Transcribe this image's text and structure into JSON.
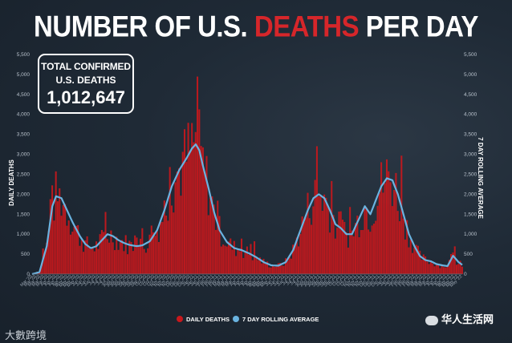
{
  "header": {
    "title_part1": "NUMBER OF U.S. ",
    "title_highlight": "DEATHS",
    "title_part2": " PER DAY"
  },
  "badge": {
    "line1": "TOTAL CONFIRMED",
    "line2": "U.S. DEATHS",
    "value": "1,012,647"
  },
  "watermarks": {
    "left": "大數跨境",
    "right": "华人生活网"
  },
  "colors": {
    "daily_bars": "#c8181c",
    "rolling_line": "#6ab3e0",
    "title_highlight": "#d6262a"
  },
  "chart_data": {
    "type": "bar",
    "title": "NUMBER OF U.S. DEATHS PER DAY",
    "ylabel": "DAILY DEATHS",
    "ylabel_right": "7 DAY ROLLING AVERAGE",
    "ylim": [
      0,
      5500
    ],
    "yticks": [
      "0",
      "500",
      "1,000",
      "1,500",
      "2,000",
      "2,500",
      "3,000",
      "3,500",
      "4,000",
      "4,500",
      "5,000",
      "5,500"
    ],
    "x_tick_labels": [
      "Mar '20",
      "Apr '20",
      "May '20",
      "Jun '20",
      "Jul '20",
      "Aug '20",
      "Sep '20",
      "Oct '20",
      "Nov '20",
      "Dec '20",
      "Jan '21",
      "Feb '21",
      "Mar '21",
      "Apr '21",
      "May '21",
      "Jun '21",
      "Jul '21",
      "Aug '21",
      "Sep '21",
      "Oct '21",
      "Nov '21",
      "Dec '21",
      "Jan '22",
      "Feb '22",
      "Mar '22",
      "Apr '22",
      "May '22"
    ],
    "legend": [
      "DAILY DEATHS",
      "7 DAY ROLLING AVERAGE"
    ],
    "legend_position": "bottom-center",
    "rolling_average_knots": [
      [
        0,
        0
      ],
      [
        4,
        50
      ],
      [
        8,
        700
      ],
      [
        11,
        1700
      ],
      [
        13,
        1950
      ],
      [
        16,
        1900
      ],
      [
        19,
        1600
      ],
      [
        22,
        1300
      ],
      [
        26,
        950
      ],
      [
        29,
        750
      ],
      [
        32,
        650
      ],
      [
        35,
        700
      ],
      [
        38,
        850
      ],
      [
        41,
        1000
      ],
      [
        44,
        950
      ],
      [
        47,
        850
      ],
      [
        50,
        780
      ],
      [
        53,
        730
      ],
      [
        57,
        700
      ],
      [
        60,
        720
      ],
      [
        64,
        820
      ],
      [
        68,
        1100
      ],
      [
        72,
        1600
      ],
      [
        76,
        2200
      ],
      [
        80,
        2600
      ],
      [
        84,
        2900
      ],
      [
        87,
        3150
      ],
      [
        89,
        3250
      ],
      [
        91,
        3100
      ],
      [
        93,
        2700
      ],
      [
        96,
        2150
      ],
      [
        99,
        1550
      ],
      [
        102,
        1100
      ],
      [
        106,
        800
      ],
      [
        110,
        650
      ],
      [
        114,
        600
      ],
      [
        118,
        520
      ],
      [
        122,
        420
      ],
      [
        126,
        300
      ],
      [
        130,
        220
      ],
      [
        134,
        210
      ],
      [
        138,
        300
      ],
      [
        142,
        600
      ],
      [
        146,
        1100
      ],
      [
        150,
        1600
      ],
      [
        153,
        1900
      ],
      [
        156,
        2000
      ],
      [
        159,
        1900
      ],
      [
        162,
        1600
      ],
      [
        165,
        1250
      ],
      [
        168,
        1150
      ],
      [
        171,
        1000
      ],
      [
        174,
        1000
      ],
      [
        178,
        1400
      ],
      [
        181,
        1700
      ],
      [
        184,
        1500
      ],
      [
        187,
        1850
      ],
      [
        190,
        2200
      ],
      [
        193,
        2400
      ],
      [
        196,
        2350
      ],
      [
        199,
        2000
      ],
      [
        202,
        1500
      ],
      [
        205,
        1000
      ],
      [
        208,
        700
      ],
      [
        211,
        450
      ],
      [
        214,
        350
      ],
      [
        217,
        320
      ],
      [
        220,
        250
      ],
      [
        223,
        220
      ],
      [
        226,
        200
      ],
      [
        229,
        460
      ],
      [
        232,
        300
      ],
      [
        234,
        230
      ]
    ],
    "daily_noise_amplitude": 0.35
  }
}
